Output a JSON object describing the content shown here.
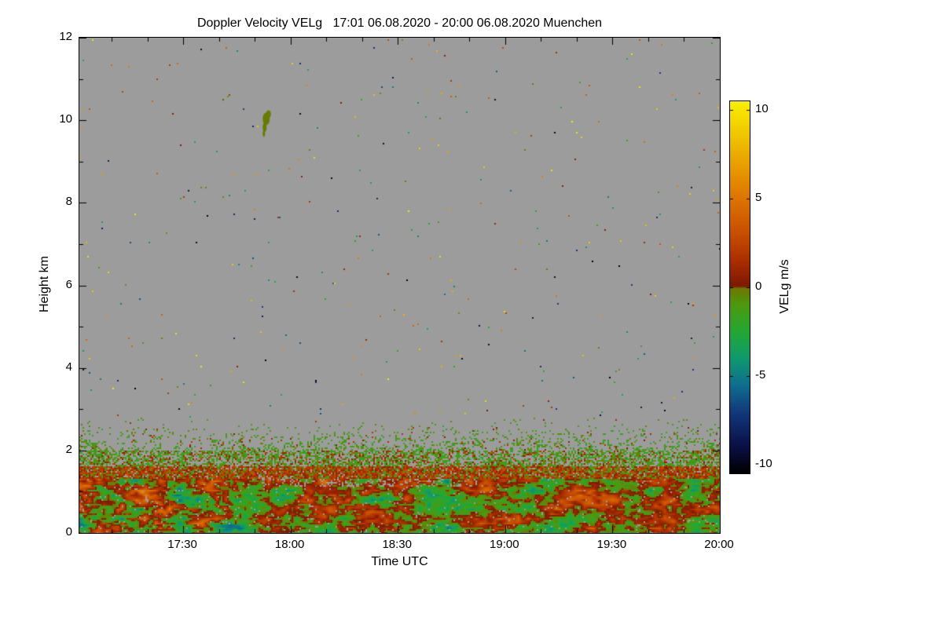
{
  "chart_data": {
    "type": "heatmap",
    "title": "Doppler Velocity VELg   17:01 06.08.2020 - 20:00 06.08.2020 Muenchen",
    "xlabel": "Time UTC",
    "ylabel": "Height km",
    "x_axis": {
      "start_time": "17:01",
      "end_time": "20:00",
      "total_minutes": 179,
      "ticks": [
        {
          "label": "17:30",
          "minute": 29
        },
        {
          "label": "18:00",
          "minute": 59
        },
        {
          "label": "18:30",
          "minute": 89
        },
        {
          "label": "19:00",
          "minute": 119
        },
        {
          "label": "19:30",
          "minute": 149
        },
        {
          "label": "20:00",
          "minute": 179
        }
      ],
      "minor_tick_every_minutes": 10
    },
    "y_axis": {
      "min": 0,
      "max": 12,
      "ticks": [
        0,
        2,
        4,
        6,
        8,
        10,
        12
      ],
      "minor_ticks": [
        1,
        3,
        5,
        7,
        9,
        11
      ]
    },
    "grid": false,
    "no_data_color": "#9c9c9c",
    "colorbar": {
      "label": "VELg m/s",
      "range": [
        -10.5,
        10.5
      ],
      "ticks": [
        10,
        5,
        0,
        -5,
        -10
      ],
      "stops": [
        [
          -10.5,
          "#000000"
        ],
        [
          -9.0,
          "#0a0f45"
        ],
        [
          -7.0,
          "#123a7d"
        ],
        [
          -5.5,
          "#0e6f8e"
        ],
        [
          -4.0,
          "#0f9a6e"
        ],
        [
          -2.5,
          "#23a832"
        ],
        [
          -1.0,
          "#4c9a0f"
        ],
        [
          -0.05,
          "#6e7600"
        ],
        [
          0.05,
          "#7c1800"
        ],
        [
          1.5,
          "#aa2e00"
        ],
        [
          3.0,
          "#c74e00"
        ],
        [
          5.0,
          "#dd7400"
        ],
        [
          7.0,
          "#e9a000"
        ],
        [
          8.5,
          "#efc400"
        ],
        [
          10.5,
          "#f9ef00"
        ]
      ]
    },
    "regions": {
      "clear_air_speckles": {
        "height_km": [
          2.8,
          12.0
        ],
        "coverage": 0.0035,
        "velocity_range": [
          -10.5,
          10.5
        ],
        "note": "isolated random noise pixels over gray no-data background"
      },
      "upper_speckle_layer": {
        "height_km": [
          2.0,
          2.8
        ],
        "coverage_bottom": 0.42,
        "coverage_top": 0.02,
        "velocity_green": [
          -2.3,
          -0.2
        ],
        "velocity_red": [
          0.3,
          2.1
        ],
        "red_fraction": 0.12
      },
      "green_layer": {
        "height_km": [
          1.6,
          2.0
        ],
        "coverage": 0.6,
        "velocity_green": [
          -2.2,
          -0.2
        ],
        "velocity_red": [
          0.3,
          2.3
        ],
        "red_fraction": 0.25
      },
      "orange_stripe": {
        "height_km": [
          1.3,
          1.6
        ],
        "coverage": 0.9,
        "velocity_red": [
          0.4,
          3.2
        ],
        "velocity_green": [
          -1.8,
          -0.2
        ],
        "green_fraction": 0.25
      },
      "boundary_layer": {
        "height_km": [
          0.0,
          1.3
        ],
        "coverage": 0.97,
        "velocity_amplitude": 5.5,
        "note": "dense turbulent band of mixed updrafts and downdrafts"
      }
    },
    "cloud_feature": {
      "time_minute": 52,
      "height_km": [
        9.6,
        10.3
      ],
      "velocity": -0.2,
      "note": "small olive cloud echo with fall streak near 10 km"
    }
  }
}
